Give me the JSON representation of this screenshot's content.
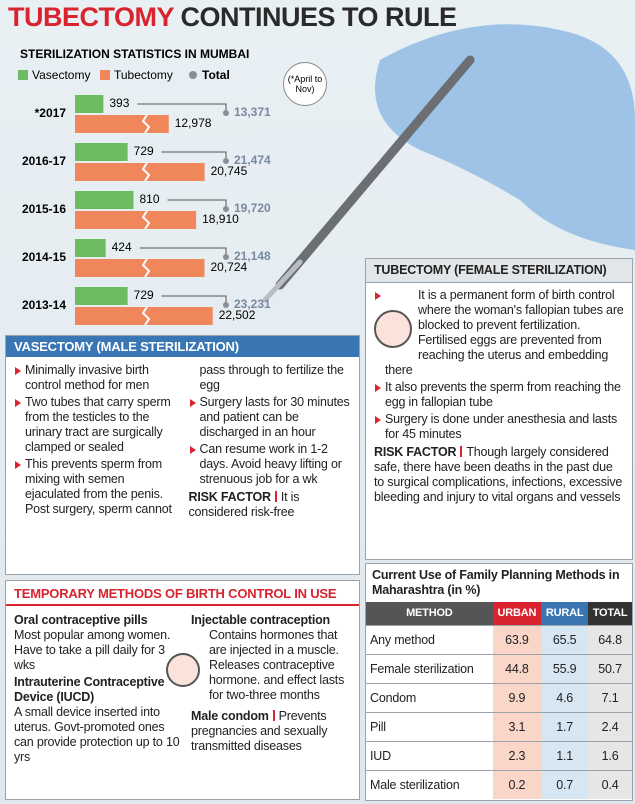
{
  "header": {
    "title_highlight": "TUBECTOMY",
    "title_rest": "CONTINUES TO RULE"
  },
  "chart_data": {
    "type": "bar",
    "title": "STERILIZATION STATISTICS IN MUMBAI",
    "note": "(*April to Nov)",
    "categories": [
      "*2017",
      "2016-17",
      "2015-16",
      "2014-15",
      "2013-14"
    ],
    "series": [
      {
        "name": "Vasectomy",
        "color": "#6dbb63",
        "values": [
          393,
          729,
          810,
          424,
          729
        ]
      },
      {
        "name": "Tubectomy",
        "color": "#f0875a",
        "values": [
          12978,
          20745,
          18910,
          20724,
          22502
        ],
        "value_labels": [
          "12,978",
          "20,745",
          "18,910",
          "20,724",
          "22,502"
        ]
      },
      {
        "name": "Total",
        "color": "#8a8f96",
        "values": [
          13371,
          21474,
          19720,
          21148,
          23231
        ],
        "value_labels": [
          "13,371",
          "21,474",
          "19,720",
          "21,148",
          "23,231"
        ]
      }
    ]
  },
  "vasectomy": {
    "title": "VASECTOMY (MALE STERILIZATION)",
    "points": [
      "Minimally invasive birth control method for men",
      "Two tubes that carry sperm from the testicles to the urinary tract are surgically clamped or sealed",
      "This prevents sperm from mixing with semen ejaculated from the penis. Post surgery, sperm cannot pass through to fertilize the egg",
      "Surgery lasts for 30 minutes and patient can be discharged in an hour",
      "Can resume work in 1-2 days. Avoid heavy lifting or strenuous job for a wk"
    ],
    "risk_factor": {
      "label": "RISK FACTOR",
      "text": "It is considered risk-free"
    }
  },
  "tubectomy": {
    "title": "TUBECTOMY (FEMALE STERILIZATION)",
    "points": [
      "It is a permanent form of birth control where the woman's fallopian tubes are blocked to prevent fertilization. Fertilised eggs are prevented from reaching the uterus and embedding there",
      "It also prevents the sperm from reaching the egg in fallopian tube",
      "Surgery is done under anesthesia and lasts for 45 minutes"
    ],
    "risk_factor": {
      "label": "RISK FACTOR",
      "text": "Though largely considered safe, there have been deaths in the past due to surgical complications, infections, excessive bleeding and injury to vital organs and vessels"
    }
  },
  "temporary_methods": {
    "title": "TEMPORARY METHODS OF BIRTH CONTROL IN USE",
    "items": [
      {
        "name": "Oral contraceptive pills",
        "description": "Most popular among women. Have to take a pill daily for 3 wks"
      },
      {
        "name": "Intrauterine Contraceptive Device (IUCD)",
        "description": "A small device inserted into uterus. Govt-promoted ones can provide protection up to 10 yrs"
      },
      {
        "name": "Injectable contraception",
        "description": "Contains hormones that are injected in a muscle. Releases contraceptive hormone. and effect lasts for two-three months"
      },
      {
        "name": "Male condom",
        "description": "Prevents pregnancies and sexually transmitted diseases"
      }
    ]
  },
  "table": {
    "title": "Current Use of Family Planning Methods in Maharashtra (in %)",
    "columns": [
      "METHOD",
      "URBAN",
      "RURAL",
      "TOTAL"
    ],
    "rows": [
      [
        "Any method",
        63.9,
        65.5,
        64.8
      ],
      [
        "Female sterilization",
        44.8,
        55.9,
        50.7
      ],
      [
        "Condom",
        9.9,
        4.6,
        7.1
      ],
      [
        "Pill",
        3.1,
        1.7,
        2.4
      ],
      [
        "IUD",
        2.3,
        1.1,
        1.6
      ],
      [
        "Male sterilization",
        0.2,
        0.7,
        0.4
      ]
    ]
  }
}
